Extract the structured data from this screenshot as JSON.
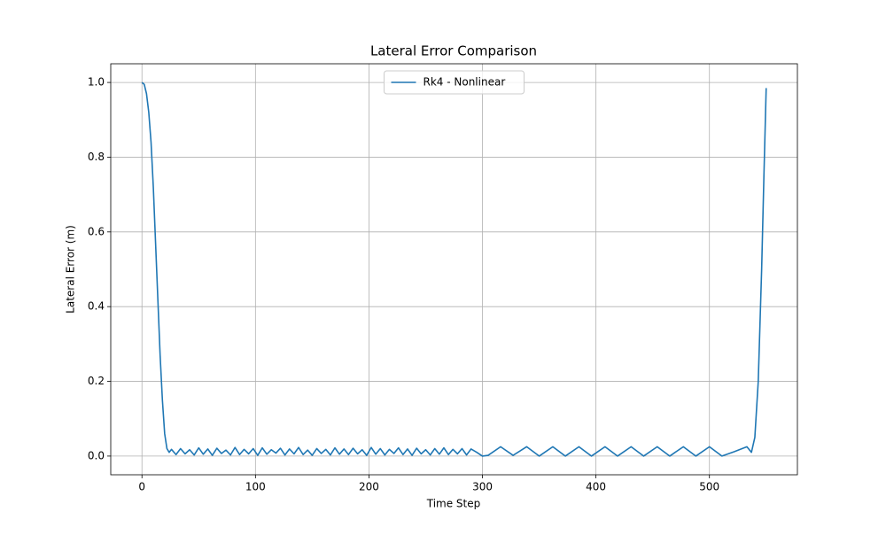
{
  "chart_data": {
    "type": "line",
    "title": "Lateral Error Comparison",
    "x_label": "Time Step",
    "y_label": "Lateral Error (m)",
    "xlim": [
      -27.5,
      577.5
    ],
    "ylim": [
      -0.05,
      1.05
    ],
    "xticks": [
      0,
      100,
      200,
      300,
      400,
      500
    ],
    "yticks": [
      {
        "value": 0,
        "label": "0.0"
      },
      0.2,
      0.4,
      0.6,
      0.8,
      {
        "value": 1,
        "label": "1.0"
      }
    ],
    "grid": true,
    "legend": "upper center",
    "x": [
      0,
      2,
      4,
      6,
      8,
      10,
      12,
      14,
      16,
      18,
      20,
      22,
      24,
      26,
      30,
      34,
      38,
      42,
      46,
      50,
      54,
      58,
      62,
      66,
      70,
      74,
      78,
      82,
      86,
      90,
      94,
      98,
      102,
      106,
      110,
      114,
      118,
      122,
      126,
      130,
      134,
      138,
      142,
      146,
      150,
      154,
      158,
      162,
      166,
      170,
      174,
      178,
      182,
      186,
      190,
      194,
      198,
      202,
      206,
      210,
      214,
      218,
      222,
      226,
      230,
      234,
      238,
      242,
      246,
      250,
      254,
      258,
      262,
      266,
      270,
      274,
      278,
      282,
      286,
      290,
      295,
      300,
      305,
      316,
      327,
      339,
      350,
      362,
      373,
      385,
      396,
      408,
      419,
      431,
      442,
      454,
      465,
      477,
      488,
      500,
      511,
      522,
      533,
      537,
      540,
      543,
      546,
      548,
      550
    ],
    "series": [
      {
        "name": "Rk4 - Nonlinear",
        "color": "#1f77b4",
        "values": [
          1.0,
          0.995,
          0.97,
          0.92,
          0.84,
          0.72,
          0.57,
          0.42,
          0.27,
          0.15,
          0.06,
          0.02,
          0.01,
          0.018,
          0.004,
          0.02,
          0.006,
          0.017,
          0.003,
          0.022,
          0.005,
          0.019,
          0.002,
          0.021,
          0.007,
          0.016,
          0.003,
          0.023,
          0.004,
          0.018,
          0.006,
          0.02,
          0.002,
          0.022,
          0.005,
          0.017,
          0.008,
          0.021,
          0.003,
          0.019,
          0.006,
          0.023,
          0.004,
          0.016,
          0.002,
          0.02,
          0.007,
          0.018,
          0.003,
          0.022,
          0.005,
          0.019,
          0.004,
          0.021,
          0.006,
          0.017,
          0.002,
          0.023,
          0.005,
          0.02,
          0.003,
          0.018,
          0.007,
          0.022,
          0.004,
          0.019,
          0.002,
          0.021,
          0.006,
          0.017,
          0.003,
          0.02,
          0.005,
          0.022,
          0.004,
          0.018,
          0.006,
          0.02,
          0.003,
          0.019,
          0.01,
          0,
          0.002,
          0.025,
          0.002,
          0.025,
          0,
          0.025,
          0,
          0.025,
          0,
          0.025,
          0,
          0.025,
          0,
          0.025,
          0,
          0.025,
          0,
          0.025,
          0,
          0.012,
          0.025,
          0.01,
          0.05,
          0.2,
          0.5,
          0.75,
          0.985
        ]
      }
    ]
  }
}
